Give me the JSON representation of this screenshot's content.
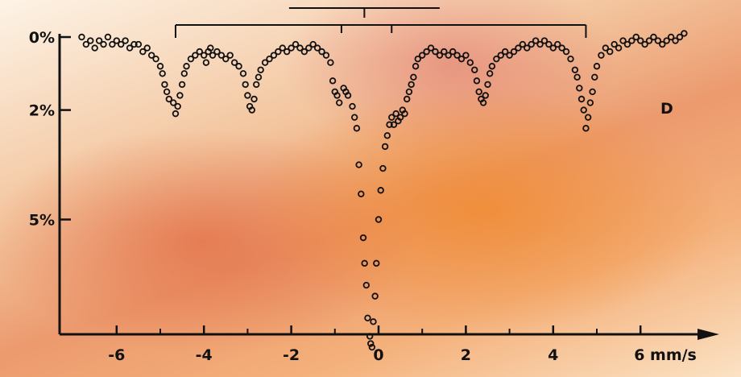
{
  "chart_data": {
    "type": "scatter",
    "title": "",
    "xlabel": "mm/s",
    "ylabel": "",
    "xlim": [
      -7.2,
      7.5
    ],
    "ylim": [
      9.0,
      0
    ],
    "x_ticks": [
      -6,
      -4,
      -2,
      0,
      2,
      4,
      6
    ],
    "x_tick_labels": [
      "-6",
      "-4",
      "-2",
      "0",
      "2",
      "4",
      "6 mm/s"
    ],
    "y_ticks": [
      0,
      2,
      5
    ],
    "y_tick_labels": [
      "0%",
      "2%",
      "5%"
    ],
    "annotation": "D",
    "grid": false,
    "legend": "none",
    "colors": {
      "points": "#111111",
      "axes": "#111111"
    },
    "sextet_bracket_positions": [
      -4.65,
      -0.85,
      0.3,
      4.75
    ],
    "doublet_bracket_positions": [
      -2.05,
      1.4
    ],
    "series": [
      {
        "values": [
          [
            -6.8,
            0.0
          ],
          [
            -6.7,
            0.2
          ],
          [
            -6.6,
            0.1
          ],
          [
            -6.5,
            0.3
          ],
          [
            -6.4,
            0.1
          ],
          [
            -6.3,
            0.2
          ],
          [
            -6.2,
            0.0
          ],
          [
            -6.1,
            0.2
          ],
          [
            -6.0,
            0.1
          ],
          [
            -5.9,
            0.2
          ],
          [
            -5.8,
            0.1
          ],
          [
            -5.7,
            0.3
          ],
          [
            -5.6,
            0.2
          ],
          [
            -5.5,
            0.2
          ],
          [
            -5.4,
            0.4
          ],
          [
            -5.3,
            0.3
          ],
          [
            -5.2,
            0.5
          ],
          [
            -5.1,
            0.6
          ],
          [
            -5.0,
            0.8
          ],
          [
            -4.95,
            1.0
          ],
          [
            -4.9,
            1.3
          ],
          [
            -4.85,
            1.5
          ],
          [
            -4.8,
            1.7
          ],
          [
            -4.7,
            1.8
          ],
          [
            -4.65,
            2.1
          ],
          [
            -4.6,
            1.9
          ],
          [
            -4.55,
            1.6
          ],
          [
            -4.5,
            1.3
          ],
          [
            -4.45,
            1.0
          ],
          [
            -4.4,
            0.8
          ],
          [
            -4.3,
            0.6
          ],
          [
            -4.2,
            0.5
          ],
          [
            -4.1,
            0.4
          ],
          [
            -4.0,
            0.5
          ],
          [
            -3.95,
            0.7
          ],
          [
            -3.9,
            0.4
          ],
          [
            -3.85,
            0.3
          ],
          [
            -3.8,
            0.5
          ],
          [
            -3.7,
            0.4
          ],
          [
            -3.6,
            0.5
          ],
          [
            -3.5,
            0.6
          ],
          [
            -3.4,
            0.5
          ],
          [
            -3.3,
            0.7
          ],
          [
            -3.2,
            0.8
          ],
          [
            -3.1,
            1.0
          ],
          [
            -3.05,
            1.3
          ],
          [
            -3.0,
            1.6
          ],
          [
            -2.95,
            1.9
          ],
          [
            -2.9,
            2.0
          ],
          [
            -2.85,
            1.7
          ],
          [
            -2.8,
            1.3
          ],
          [
            -2.75,
            1.1
          ],
          [
            -2.7,
            0.9
          ],
          [
            -2.6,
            0.7
          ],
          [
            -2.5,
            0.6
          ],
          [
            -2.4,
            0.5
          ],
          [
            -2.3,
            0.4
          ],
          [
            -2.2,
            0.3
          ],
          [
            -2.1,
            0.4
          ],
          [
            -2.0,
            0.3
          ],
          [
            -1.9,
            0.2
          ],
          [
            -1.8,
            0.3
          ],
          [
            -1.7,
            0.4
          ],
          [
            -1.6,
            0.3
          ],
          [
            -1.5,
            0.2
          ],
          [
            -1.4,
            0.3
          ],
          [
            -1.3,
            0.4
          ],
          [
            -1.2,
            0.5
          ],
          [
            -1.1,
            0.7
          ],
          [
            -1.05,
            1.2
          ],
          [
            -1.0,
            1.5
          ],
          [
            -0.95,
            1.6
          ],
          [
            -0.9,
            1.8
          ],
          [
            -0.8,
            1.4
          ],
          [
            -0.75,
            1.5
          ],
          [
            -0.7,
            1.6
          ],
          [
            -0.6,
            1.9
          ],
          [
            -0.55,
            2.2
          ],
          [
            -0.5,
            2.5
          ],
          [
            -0.45,
            3.5
          ],
          [
            -0.4,
            4.3
          ],
          [
            -0.35,
            5.5
          ],
          [
            -0.32,
            6.2
          ],
          [
            -0.28,
            6.8
          ],
          [
            -0.25,
            7.7
          ],
          [
            -0.2,
            8.2
          ],
          [
            -0.18,
            8.4
          ],
          [
            -0.15,
            8.5
          ],
          [
            -0.12,
            7.8
          ],
          [
            -0.08,
            7.1
          ],
          [
            -0.05,
            6.2
          ],
          [
            0.0,
            5.0
          ],
          [
            0.05,
            4.2
          ],
          [
            0.1,
            3.6
          ],
          [
            0.15,
            3.0
          ],
          [
            0.2,
            2.7
          ],
          [
            0.25,
            2.4
          ],
          [
            0.3,
            2.2
          ],
          [
            0.35,
            2.4
          ],
          [
            0.4,
            2.1
          ],
          [
            0.45,
            2.3
          ],
          [
            0.5,
            2.2
          ],
          [
            0.55,
            2.0
          ],
          [
            0.6,
            2.1
          ],
          [
            0.65,
            1.7
          ],
          [
            0.7,
            1.5
          ],
          [
            0.75,
            1.3
          ],
          [
            0.8,
            1.1
          ],
          [
            0.85,
            0.8
          ],
          [
            0.9,
            0.6
          ],
          [
            1.0,
            0.5
          ],
          [
            1.1,
            0.4
          ],
          [
            1.2,
            0.3
          ],
          [
            1.3,
            0.4
          ],
          [
            1.4,
            0.5
          ],
          [
            1.5,
            0.4
          ],
          [
            1.6,
            0.5
          ],
          [
            1.7,
            0.4
          ],
          [
            1.8,
            0.5
          ],
          [
            1.9,
            0.6
          ],
          [
            2.0,
            0.5
          ],
          [
            2.1,
            0.7
          ],
          [
            2.2,
            0.9
          ],
          [
            2.25,
            1.2
          ],
          [
            2.3,
            1.5
          ],
          [
            2.35,
            1.7
          ],
          [
            2.4,
            1.8
          ],
          [
            2.45,
            1.6
          ],
          [
            2.5,
            1.3
          ],
          [
            2.55,
            1.0
          ],
          [
            2.6,
            0.8
          ],
          [
            2.7,
            0.6
          ],
          [
            2.8,
            0.5
          ],
          [
            2.9,
            0.4
          ],
          [
            3.0,
            0.5
          ],
          [
            3.1,
            0.4
          ],
          [
            3.2,
            0.3
          ],
          [
            3.3,
            0.2
          ],
          [
            3.4,
            0.3
          ],
          [
            3.5,
            0.2
          ],
          [
            3.6,
            0.1
          ],
          [
            3.7,
            0.2
          ],
          [
            3.8,
            0.1
          ],
          [
            3.9,
            0.2
          ],
          [
            4.0,
            0.3
          ],
          [
            4.1,
            0.2
          ],
          [
            4.2,
            0.3
          ],
          [
            4.3,
            0.4
          ],
          [
            4.4,
            0.6
          ],
          [
            4.5,
            0.9
          ],
          [
            4.55,
            1.1
          ],
          [
            4.6,
            1.4
          ],
          [
            4.65,
            1.7
          ],
          [
            4.7,
            2.0
          ],
          [
            4.75,
            2.5
          ],
          [
            4.8,
            2.2
          ],
          [
            4.85,
            1.8
          ],
          [
            4.9,
            1.5
          ],
          [
            4.95,
            1.1
          ],
          [
            5.0,
            0.8
          ],
          [
            5.1,
            0.5
          ],
          [
            5.2,
            0.3
          ],
          [
            5.3,
            0.4
          ],
          [
            5.4,
            0.2
          ],
          [
            5.5,
            0.3
          ],
          [
            5.6,
            0.1
          ],
          [
            5.7,
            0.2
          ],
          [
            5.8,
            0.1
          ],
          [
            5.9,
            0.0
          ],
          [
            6.0,
            0.1
          ],
          [
            6.1,
            0.2
          ],
          [
            6.2,
            0.1
          ],
          [
            6.3,
            0.0
          ],
          [
            6.4,
            0.1
          ],
          [
            6.5,
            0.2
          ],
          [
            6.6,
            0.1
          ],
          [
            6.7,
            0.0
          ],
          [
            6.8,
            0.1
          ],
          [
            6.9,
            0.0
          ],
          [
            7.0,
            -0.1
          ]
        ]
      }
    ]
  }
}
